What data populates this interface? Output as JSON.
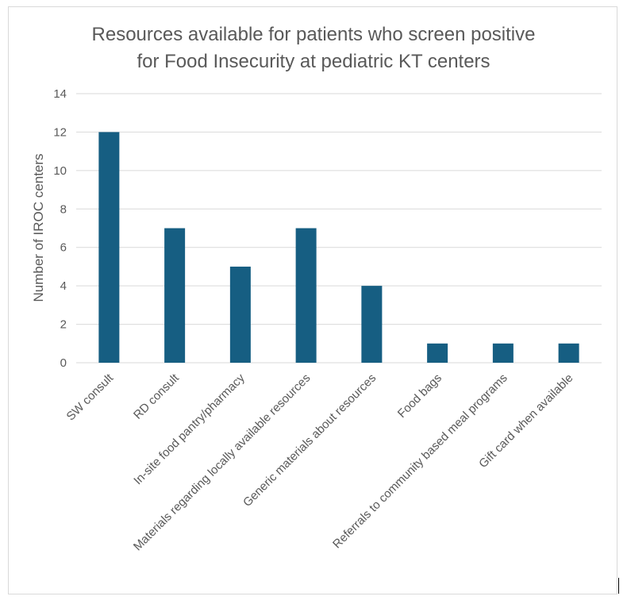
{
  "chart_data": {
    "type": "bar",
    "title_lines": [
      "Resources available for patients who screen positive",
      "for Food Insecurity at pediatric KT centers"
    ],
    "ylabel": "Number of IROC centers",
    "xlabel": "",
    "categories": [
      "SW consult",
      "RD consult",
      "In-site food pantry/pharmacy",
      "Materials regarding locally available resources",
      "Generic materials about resources",
      "Food bags",
      "Referrals to community based meal programs",
      "Gift card when available"
    ],
    "values": [
      12,
      7,
      5,
      7,
      4,
      1,
      1,
      1
    ],
    "ylim": [
      0,
      14
    ],
    "yticks": [
      0,
      2,
      4,
      6,
      8,
      10,
      12,
      14
    ],
    "grid": true,
    "legend": "none",
    "bar_color": "#165e82",
    "grid_color": "#d9d9d9"
  }
}
